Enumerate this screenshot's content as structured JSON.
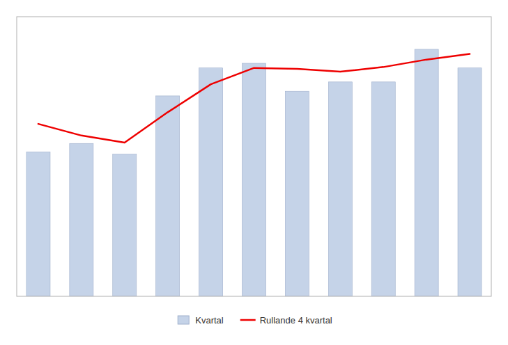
{
  "chart_data": {
    "type": "bar",
    "categories": [
      null,
      null,
      null,
      null,
      null,
      null,
      null,
      null,
      null,
      null,
      null
    ],
    "series": [
      {
        "name": "Kvartal",
        "type": "bar",
        "color": "#c5d3e8",
        "values": [
          310,
          328,
          305,
          430,
          490,
          500,
          440,
          460,
          460,
          530,
          490
        ]
      },
      {
        "name": "Rullande 4 kvartal",
        "type": "line",
        "color": "#ee0000",
        "values": [
          370,
          345,
          330,
          395,
          455,
          490,
          488,
          482,
          492,
          508,
          520
        ]
      }
    ],
    "ylim": [
      0,
      600
    ],
    "grid": false,
    "tick_labels": false,
    "legend": "bottom"
  }
}
